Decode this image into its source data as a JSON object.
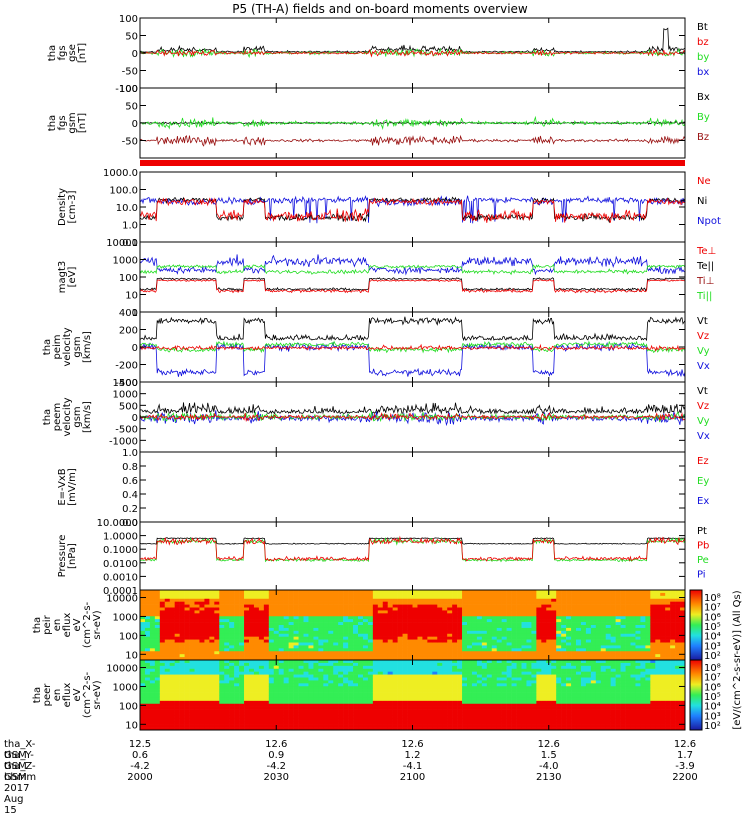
{
  "title": "P5 (TH-A) fields and on-board moments overview",
  "colors": {
    "black": "#000000",
    "red": "#ee0000",
    "green": "#22dd22",
    "blue": "#1111dd",
    "darkred": "#991111"
  },
  "chart_data": [
    {
      "type": "line",
      "id": "fgs_gse",
      "ylabel_lines": [
        "tha",
        "fgs",
        "gse",
        "[nT]"
      ],
      "ylim": [
        -100,
        100
      ],
      "ticks": [
        "100",
        "50",
        "0",
        "-50",
        "-100"
      ],
      "tick_values": [
        100,
        50,
        0,
        -50,
        -100
      ],
      "legend": [
        {
          "label": "Bt",
          "color": "#000000"
        },
        {
          "label": "bz",
          "color": "#ee0000"
        },
        {
          "label": "by",
          "color": "#22dd22"
        },
        {
          "label": "bx",
          "color": "#1111dd"
        }
      ]
    },
    {
      "type": "line",
      "id": "fgs_gsm",
      "ylabel_lines": [
        "tha",
        "fgs",
        "gsm",
        "[nT]"
      ],
      "ylim": [
        -100,
        100
      ],
      "ticks": [
        "100",
        "50",
        "0",
        "-50"
      ],
      "tick_values": [
        100,
        50,
        0,
        -50
      ],
      "legend": [
        {
          "label": "Bx",
          "color": "#000000"
        },
        {
          "label": "By",
          "color": "#22dd22"
        },
        {
          "label": "Bz",
          "color": "#991111"
        }
      ]
    },
    {
      "type": "line",
      "id": "density",
      "scale": "log",
      "ylabel_lines": [
        "Density",
        "[cm-3]"
      ],
      "ylim": [
        0.1,
        1000
      ],
      "ticks": [
        "1000.0",
        "100.0",
        "10.0",
        "1.0",
        "0.1"
      ],
      "tick_values": [
        1000,
        100,
        10,
        1,
        0.1
      ],
      "legend": [
        {
          "label": "Ne",
          "color": "#ee0000"
        },
        {
          "label": "Ni",
          "color": "#000000"
        },
        {
          "label": "Npot",
          "color": "#1111dd"
        }
      ]
    },
    {
      "type": "line",
      "id": "temperature",
      "scale": "log",
      "ylabel_lines": [
        "magt3",
        "[eV]"
      ],
      "ylim": [
        1,
        10000
      ],
      "ticks": [
        "10000",
        "1000",
        "100",
        "10",
        "1"
      ],
      "tick_values": [
        10000,
        1000,
        100,
        10,
        1
      ],
      "legend": [
        {
          "label": "Te⊥",
          "color": "#ee0000"
        },
        {
          "label": "Te||",
          "color": "#000000"
        },
        {
          "label": "Ti⊥",
          "color": "#991111"
        },
        {
          "label": "Ti||",
          "color": "#22dd22"
        }
      ]
    },
    {
      "type": "line",
      "id": "peim_velocity",
      "ylabel_lines": [
        "tha",
        "peim",
        "velocity",
        "gsm",
        "[km/s]"
      ],
      "ylim": [
        -400,
        400
      ],
      "ticks": [
        "400",
        "200",
        "0",
        "-200",
        "-400"
      ],
      "tick_values": [
        400,
        200,
        0,
        -200,
        -400
      ],
      "legend": [
        {
          "label": "Vt",
          "color": "#000000"
        },
        {
          "label": "Vz",
          "color": "#ee0000"
        },
        {
          "label": "Vy",
          "color": "#22dd22"
        },
        {
          "label": "Vx",
          "color": "#1111dd"
        }
      ]
    },
    {
      "type": "line",
      "id": "peem_velocity",
      "ylabel_lines": [
        "tha",
        "peem",
        "velocity",
        "gsm",
        "[km/s]"
      ],
      "ylim": [
        -1500,
        1500
      ],
      "ticks": [
        "1500",
        "1000",
        "500",
        "0",
        "-500",
        "-1000"
      ],
      "tick_values": [
        1500,
        1000,
        500,
        0,
        -500,
        -1000
      ],
      "legend": [
        {
          "label": "Vt",
          "color": "#000000"
        },
        {
          "label": "Vz",
          "color": "#ee0000"
        },
        {
          "label": "Vy",
          "color": "#22dd22"
        },
        {
          "label": "Vx",
          "color": "#1111dd"
        }
      ]
    },
    {
      "type": "line",
      "id": "efield",
      "ylabel_lines": [
        "E=-VxB",
        "[mV/m]"
      ],
      "ylim": [
        0,
        1
      ],
      "ticks": [
        "1.0",
        "0.8",
        "0.6",
        "0.4",
        "0.2",
        "0.0"
      ],
      "tick_values": [
        1.0,
        0.8,
        0.6,
        0.4,
        0.2,
        0.0
      ],
      "legend": [
        {
          "label": "Ez",
          "color": "#ee0000"
        },
        {
          "label": "Ey",
          "color": "#22dd22"
        },
        {
          "label": "Ex",
          "color": "#1111dd"
        }
      ]
    },
    {
      "type": "line",
      "id": "pressure",
      "scale": "log",
      "ylabel_lines": [
        "Pressure",
        "[nPa]"
      ],
      "ylim": [
        0.0001,
        10
      ],
      "ticks": [
        "10.0000",
        "1.0000",
        "0.1000",
        "0.0100",
        "0.0010",
        "0.0001"
      ],
      "tick_values": [
        10,
        1,
        0.1,
        0.01,
        0.001,
        0.0001
      ],
      "legend": [
        {
          "label": "Pt",
          "color": "#000000"
        },
        {
          "label": "Pb",
          "color": "#ee0000"
        },
        {
          "label": "Pe",
          "color": "#22dd22"
        },
        {
          "label": "Pi",
          "color": "#1111dd"
        }
      ]
    },
    {
      "type": "heatmap",
      "id": "peir_eflux",
      "scale": "log",
      "ylabel_lines": [
        "tha",
        "peir",
        "en",
        "eflux",
        "eV",
        "(cm^2-s-",
        "sr-eV)"
      ],
      "ylim": [
        5,
        25000
      ],
      "ticks": [
        "10000",
        "1000",
        "100",
        "10"
      ],
      "tick_values": [
        10000,
        1000,
        100,
        10
      ]
    },
    {
      "type": "heatmap",
      "id": "peer_eflux",
      "scale": "log",
      "ylabel_lines": [
        "tha",
        "peer",
        "en",
        "eflux",
        "eV",
        "(cm^2-s-",
        "sr-eV)"
      ],
      "ylim": [
        5,
        25000
      ],
      "ticks": [
        "10000",
        "1000",
        "100",
        "10"
      ],
      "tick_values": [
        10000,
        1000,
        100,
        10
      ]
    }
  ],
  "colorbar": {
    "label": "[eV/(cm^2-s-sr-eV)] (All Qs)",
    "upper_ticks": [
      "10⁸",
      "10⁷",
      "10⁶",
      "10⁵",
      "10⁴",
      "10³",
      "10²"
    ],
    "lower_ticks": [
      "10⁸",
      "10⁷",
      "10⁶",
      "10⁵",
      "10⁴",
      "10³",
      "10²"
    ]
  },
  "x_axis": {
    "row_labels": [
      "tha_X-GSM",
      "tha_Y-GSM",
      "tha_Z-GSM",
      "hhmm",
      "2017 Aug 15"
    ],
    "ticks": [
      {
        "x_gsm": "12.5",
        "y_gsm": "0.6",
        "z_gsm": "-4.2",
        "hhmm": "2000"
      },
      {
        "x_gsm": "12.6",
        "y_gsm": "0.9",
        "z_gsm": "-4.2",
        "hhmm": "2030"
      },
      {
        "x_gsm": "12.6",
        "y_gsm": "1.2",
        "z_gsm": "-4.1",
        "hhmm": "2100"
      },
      {
        "x_gsm": "12.6",
        "y_gsm": "1.5",
        "z_gsm": "-4.0",
        "hhmm": "2130"
      },
      {
        "x_gsm": "12.6",
        "y_gsm": "1.7",
        "z_gsm": "-3.9",
        "hhmm": "2200"
      }
    ]
  }
}
